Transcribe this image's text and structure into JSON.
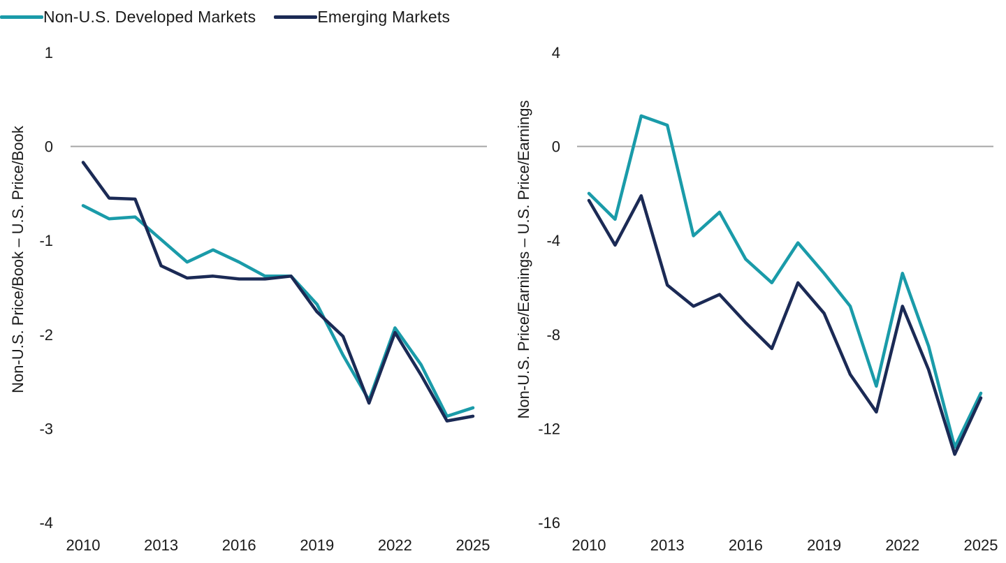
{
  "legend": [
    {
      "name": "Non-U.S. Developed Markets",
      "color": "#1a9ba9"
    },
    {
      "name": "Emerging Markets",
      "color": "#1b2a55"
    }
  ],
  "chart_data": [
    {
      "type": "line",
      "ylabel": "Non-U.S. Price/Book – U.S. Price/Book",
      "ylim": [
        -4,
        1
      ],
      "yticks": [
        1,
        0,
        -1,
        -2,
        -3,
        -4
      ],
      "xlim": [
        2010,
        2025
      ],
      "xticks": [
        2010,
        2013,
        2016,
        2019,
        2022,
        2025
      ],
      "zero_line": true,
      "x": [
        2010,
        2011,
        2012,
        2013,
        2014,
        2015,
        2016,
        2017,
        2018,
        2019,
        2020,
        2021,
        2022,
        2023,
        2024,
        2025
      ],
      "series": [
        {
          "name": "Non-U.S. Developed Markets",
          "color": "#1a9ba9",
          "values": [
            -0.63,
            -0.77,
            -0.75,
            -0.99,
            -1.23,
            -1.1,
            -1.23,
            -1.38,
            -1.38,
            -1.68,
            -2.22,
            -2.7,
            -1.93,
            -2.32,
            -2.87,
            -2.78
          ]
        },
        {
          "name": "Emerging Markets",
          "color": "#1b2a55",
          "values": [
            -0.17,
            -0.55,
            -0.56,
            -1.27,
            -1.4,
            -1.38,
            -1.41,
            -1.41,
            -1.38,
            -1.76,
            -2.02,
            -2.73,
            -1.98,
            -2.43,
            -2.92,
            -2.87
          ]
        }
      ]
    },
    {
      "type": "line",
      "ylabel": "Non-U.S. Price/Earnings – U.S. Price/Earnings",
      "ylim": [
        -16,
        4
      ],
      "yticks": [
        4,
        0,
        -4,
        -8,
        -12,
        -16
      ],
      "xlim": [
        2010,
        2025
      ],
      "xticks": [
        2010,
        2013,
        2016,
        2019,
        2022,
        2025
      ],
      "zero_line": true,
      "x": [
        2010,
        2011,
        2012,
        2013,
        2014,
        2015,
        2016,
        2017,
        2018,
        2019,
        2020,
        2021,
        2022,
        2023,
        2024,
        2025
      ],
      "series": [
        {
          "name": "Non-U.S. Developed Markets",
          "color": "#1a9ba9",
          "values": [
            -2.0,
            -3.1,
            1.3,
            0.9,
            -3.8,
            -2.8,
            -4.8,
            -5.8,
            -4.1,
            -5.4,
            -6.8,
            -10.2,
            -5.4,
            -8.5,
            -12.8,
            -10.5
          ]
        },
        {
          "name": "Emerging Markets",
          "color": "#1b2a55",
          "values": [
            -2.3,
            -4.2,
            -2.1,
            -5.9,
            -6.8,
            -6.3,
            -7.5,
            -8.6,
            -5.8,
            -7.1,
            -9.7,
            -11.3,
            -6.8,
            -9.5,
            -13.1,
            -10.7
          ]
        }
      ]
    }
  ]
}
